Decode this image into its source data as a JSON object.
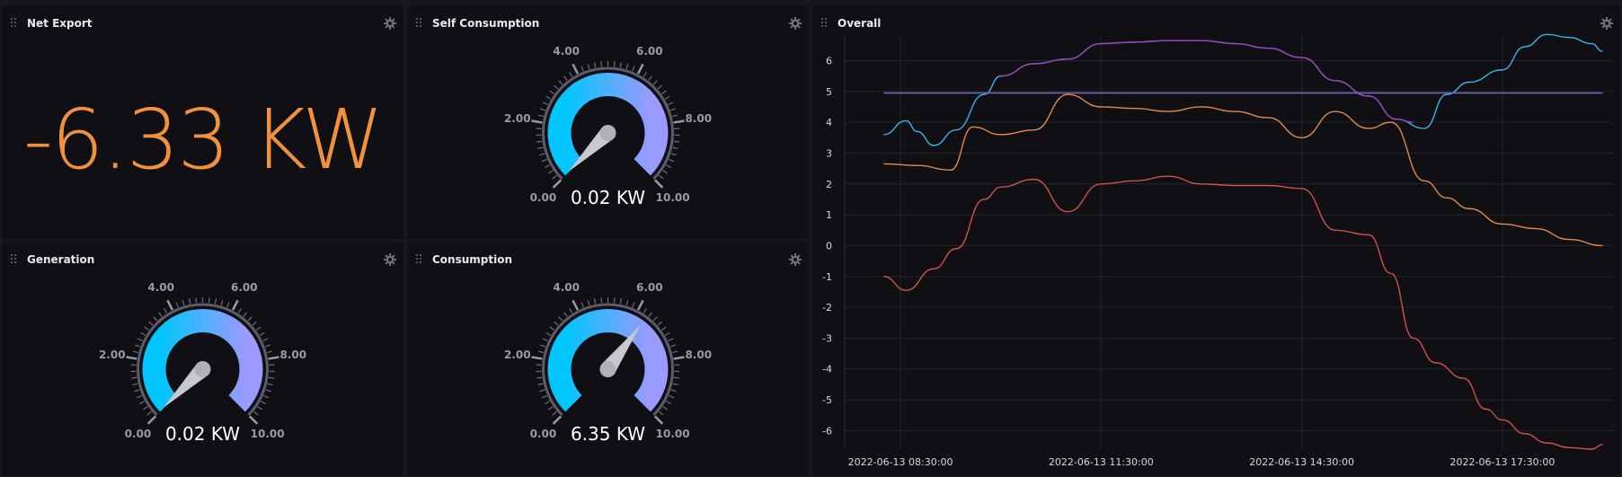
{
  "colors": {
    "background": "#0f0f14",
    "accent_orange": "#f2913d",
    "gauge_start": "#00c6ff",
    "gauge_end": "#9a9aff",
    "gauge_ring": "#5c5c6a",
    "label_gray": "#9a9aa6"
  },
  "panels": {
    "net_export": {
      "title": "Net Export",
      "value": "-6.33 KW",
      "icon": "gear-icon"
    },
    "self_consumption": {
      "title": "Self Consumption",
      "value_text": "0.02 KW",
      "value": 0.02,
      "icon": "gear-icon"
    },
    "generation": {
      "title": "Generation",
      "value_text": "0.02 KW",
      "value": 0.02,
      "icon": "gear-icon"
    },
    "consumption": {
      "title": "Consumption",
      "value_text": "6.35 KW",
      "value": 6.35,
      "icon": "gear-icon"
    },
    "overall": {
      "title": "Overall",
      "icon": "gear-icon"
    }
  },
  "gauge": {
    "min": 0,
    "max": 10,
    "tick_labels": [
      "0.00",
      "2.00",
      "4.00",
      "6.00",
      "8.00",
      "10.00"
    ]
  },
  "chart_data": {
    "type": "line",
    "title": "",
    "xlabel": "",
    "ylabel": "",
    "ylim": [
      -6.6,
      6.8
    ],
    "xlim": [
      "2022-06-13 07:40",
      "2022-06-13 19:10"
    ],
    "yticks": [
      6,
      5,
      4,
      3,
      2,
      1,
      0,
      -1,
      -2,
      -3,
      -4,
      -5,
      -6
    ],
    "xticks": [
      "2022-06-13 08:30:00",
      "2022-06-13 11:30:00",
      "2022-06-13 14:30:00",
      "2022-06-13 17:30:00"
    ],
    "grid": true,
    "series": [
      {
        "color": "#3ab4e6",
        "x": [
          "08:15",
          "08:35",
          "08:45",
          "09:00",
          "09:20",
          "09:45",
          "10:00",
          "10:30",
          "11:00",
          "11:30",
          "12:00",
          "12:30",
          "13:00",
          "13:30",
          "14:00",
          "14:30",
          "15:00",
          "15:30",
          "15:55",
          "16:20",
          "16:40",
          "17:00",
          "17:30",
          "17:50",
          "18:10",
          "18:30",
          "18:50",
          "19:00"
        ],
        "values": [
          3.6,
          4.05,
          3.7,
          3.25,
          3.75,
          4.9,
          5.5,
          5.9,
          6.05,
          6.55,
          6.6,
          6.65,
          6.65,
          6.55,
          6.4,
          6.1,
          5.35,
          4.85,
          4.1,
          3.8,
          4.9,
          5.3,
          5.7,
          6.45,
          6.85,
          6.75,
          6.55,
          6.3
        ]
      },
      {
        "color": "#a23cb5",
        "x": [
          "10:00",
          "10:30",
          "11:00",
          "11:30",
          "12:00",
          "12:30",
          "13:00",
          "13:30",
          "14:00",
          "14:30",
          "15:00",
          "15:30",
          "15:55",
          "16:10"
        ],
        "values": [
          5.5,
          5.9,
          6.05,
          6.55,
          6.6,
          6.65,
          6.65,
          6.55,
          6.4,
          6.1,
          5.35,
          4.85,
          4.1,
          4.0
        ]
      },
      {
        "color": "#7a6ac0",
        "x": [
          "08:15",
          "19:00"
        ],
        "values": [
          4.95,
          4.95
        ]
      },
      {
        "color": "#e08a4f",
        "x": [
          "08:15",
          "08:45",
          "09:15",
          "09:35",
          "10:00",
          "10:30",
          "11:00",
          "11:30",
          "12:00",
          "12:30",
          "13:00",
          "13:30",
          "14:00",
          "14:30",
          "15:00",
          "15:30",
          "15:50",
          "16:20",
          "16:40",
          "17:00",
          "17:30",
          "18:00",
          "18:30",
          "19:00"
        ],
        "values": [
          2.65,
          2.6,
          2.45,
          3.85,
          3.6,
          3.75,
          4.9,
          4.5,
          4.45,
          4.35,
          4.5,
          4.35,
          4.15,
          3.5,
          4.35,
          3.8,
          4.0,
          2.1,
          1.55,
          1.2,
          0.7,
          0.55,
          0.2,
          0.0
        ]
      },
      {
        "color": "#d0524a",
        "x": [
          "08:15",
          "08:35",
          "09:00",
          "09:20",
          "09:45",
          "10:00",
          "10:30",
          "11:00",
          "11:30",
          "12:00",
          "12:30",
          "13:00",
          "13:30",
          "14:00",
          "14:30",
          "15:00",
          "15:30",
          "15:50",
          "16:10",
          "16:30",
          "16:55",
          "17:15",
          "17:30",
          "17:50",
          "18:10",
          "18:30",
          "18:50",
          "19:00"
        ],
        "values": [
          -1.0,
          -1.45,
          -0.75,
          -0.1,
          1.5,
          1.9,
          2.15,
          1.1,
          2.0,
          2.1,
          2.25,
          2.0,
          1.95,
          1.95,
          1.85,
          0.5,
          0.35,
          -0.9,
          -3.0,
          -3.8,
          -4.3,
          -5.3,
          -5.65,
          -6.1,
          -6.4,
          -6.55,
          -6.6,
          -6.45
        ]
      }
    ]
  }
}
